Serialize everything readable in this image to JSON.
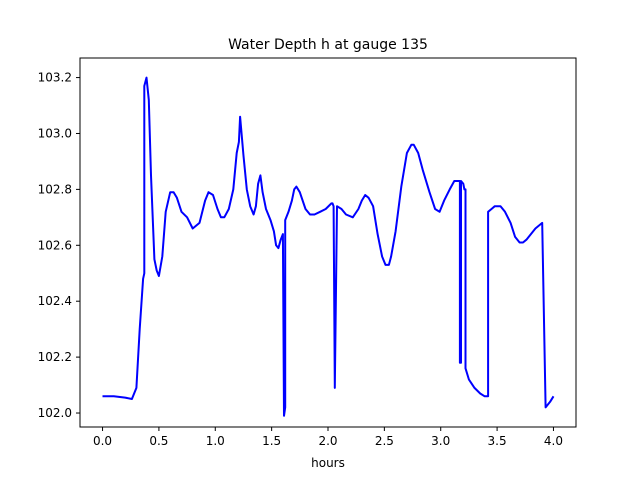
{
  "chart_data": {
    "type": "line",
    "title": "Water Depth h at gauge 135",
    "xlabel": "hours",
    "ylabel": "",
    "xlim": [
      -0.2,
      4.2
    ],
    "ylim": [
      101.95,
      103.27
    ],
    "x_ticks": [
      0.0,
      0.5,
      1.0,
      1.5,
      2.0,
      2.5,
      3.0,
      3.5,
      4.0
    ],
    "x_tick_labels": [
      "0.0",
      "0.5",
      "1.0",
      "1.5",
      "2.0",
      "2.5",
      "3.0",
      "3.5",
      "4.0"
    ],
    "y_ticks": [
      102.0,
      102.2,
      102.4,
      102.6,
      102.8,
      103.0,
      103.2
    ],
    "y_tick_labels": [
      "102.0",
      "102.2",
      "102.4",
      "102.6",
      "102.8",
      "103.0",
      "103.2"
    ],
    "grid": false,
    "series": [
      {
        "color": "#0000ff",
        "x": [
          0.0,
          0.1,
          0.2,
          0.26,
          0.3,
          0.33,
          0.36,
          0.37,
          0.37,
          0.39,
          0.41,
          0.43,
          0.46,
          0.48,
          0.5,
          0.53,
          0.56,
          0.6,
          0.63,
          0.66,
          0.7,
          0.75,
          0.8,
          0.86,
          0.91,
          0.94,
          0.98,
          1.02,
          1.05,
          1.08,
          1.12,
          1.16,
          1.19,
          1.21,
          1.22,
          1.25,
          1.28,
          1.31,
          1.34,
          1.36,
          1.38,
          1.4,
          1.42,
          1.45,
          1.49,
          1.52,
          1.54,
          1.56,
          1.58,
          1.6,
          1.61,
          1.62,
          1.62,
          1.65,
          1.68,
          1.7,
          1.72,
          1.75,
          1.8,
          1.84,
          1.88,
          1.93,
          1.98,
          2.03,
          2.04,
          2.05,
          2.06,
          2.06,
          2.08,
          2.12,
          2.16,
          2.22,
          2.27,
          2.3,
          2.33,
          2.36,
          2.4,
          2.44,
          2.48,
          2.51,
          2.54,
          2.56,
          2.6,
          2.65,
          2.7,
          2.74,
          2.76,
          2.8,
          2.84,
          2.9,
          2.95,
          2.99,
          3.03,
          3.08,
          3.12,
          3.15,
          3.17,
          3.17,
          3.18,
          3.18,
          3.2,
          3.21,
          3.22,
          3.22,
          3.25,
          3.3,
          3.35,
          3.39,
          3.42,
          3.42,
          3.45,
          3.48,
          3.5,
          3.53,
          3.57,
          3.62,
          3.66,
          3.7,
          3.73,
          3.76,
          3.8,
          3.84,
          3.9,
          3.93,
          3.93,
          3.97,
          4.0
        ],
        "y": [
          102.06,
          102.06,
          102.055,
          102.05,
          102.09,
          102.3,
          102.48,
          102.5,
          103.17,
          103.2,
          103.12,
          102.85,
          102.55,
          102.51,
          102.49,
          102.56,
          102.72,
          102.79,
          102.79,
          102.77,
          102.72,
          102.7,
          102.66,
          102.68,
          102.76,
          102.79,
          102.78,
          102.73,
          102.7,
          102.7,
          102.73,
          102.8,
          102.93,
          102.97,
          103.06,
          102.92,
          102.8,
          102.74,
          102.71,
          102.74,
          102.82,
          102.85,
          102.79,
          102.73,
          102.69,
          102.65,
          102.6,
          102.59,
          102.62,
          102.64,
          101.99,
          102.02,
          102.69,
          102.72,
          102.76,
          102.8,
          102.81,
          102.79,
          102.73,
          102.71,
          102.71,
          102.72,
          102.73,
          102.75,
          102.75,
          102.74,
          102.1,
          102.09,
          102.74,
          102.73,
          102.71,
          102.7,
          102.73,
          102.76,
          102.78,
          102.77,
          102.74,
          102.64,
          102.56,
          102.53,
          102.53,
          102.56,
          102.65,
          102.81,
          102.93,
          102.96,
          102.96,
          102.93,
          102.87,
          102.79,
          102.73,
          102.72,
          102.76,
          102.8,
          102.83,
          102.83,
          102.83,
          102.18,
          102.18,
          102.83,
          102.82,
          102.8,
          102.8,
          102.16,
          102.12,
          102.09,
          102.07,
          102.06,
          102.06,
          102.72,
          102.73,
          102.74,
          102.74,
          102.74,
          102.72,
          102.68,
          102.63,
          102.61,
          102.61,
          102.62,
          102.64,
          102.66,
          102.68,
          102.02,
          102.02,
          102.04,
          102.06
        ]
      }
    ]
  }
}
